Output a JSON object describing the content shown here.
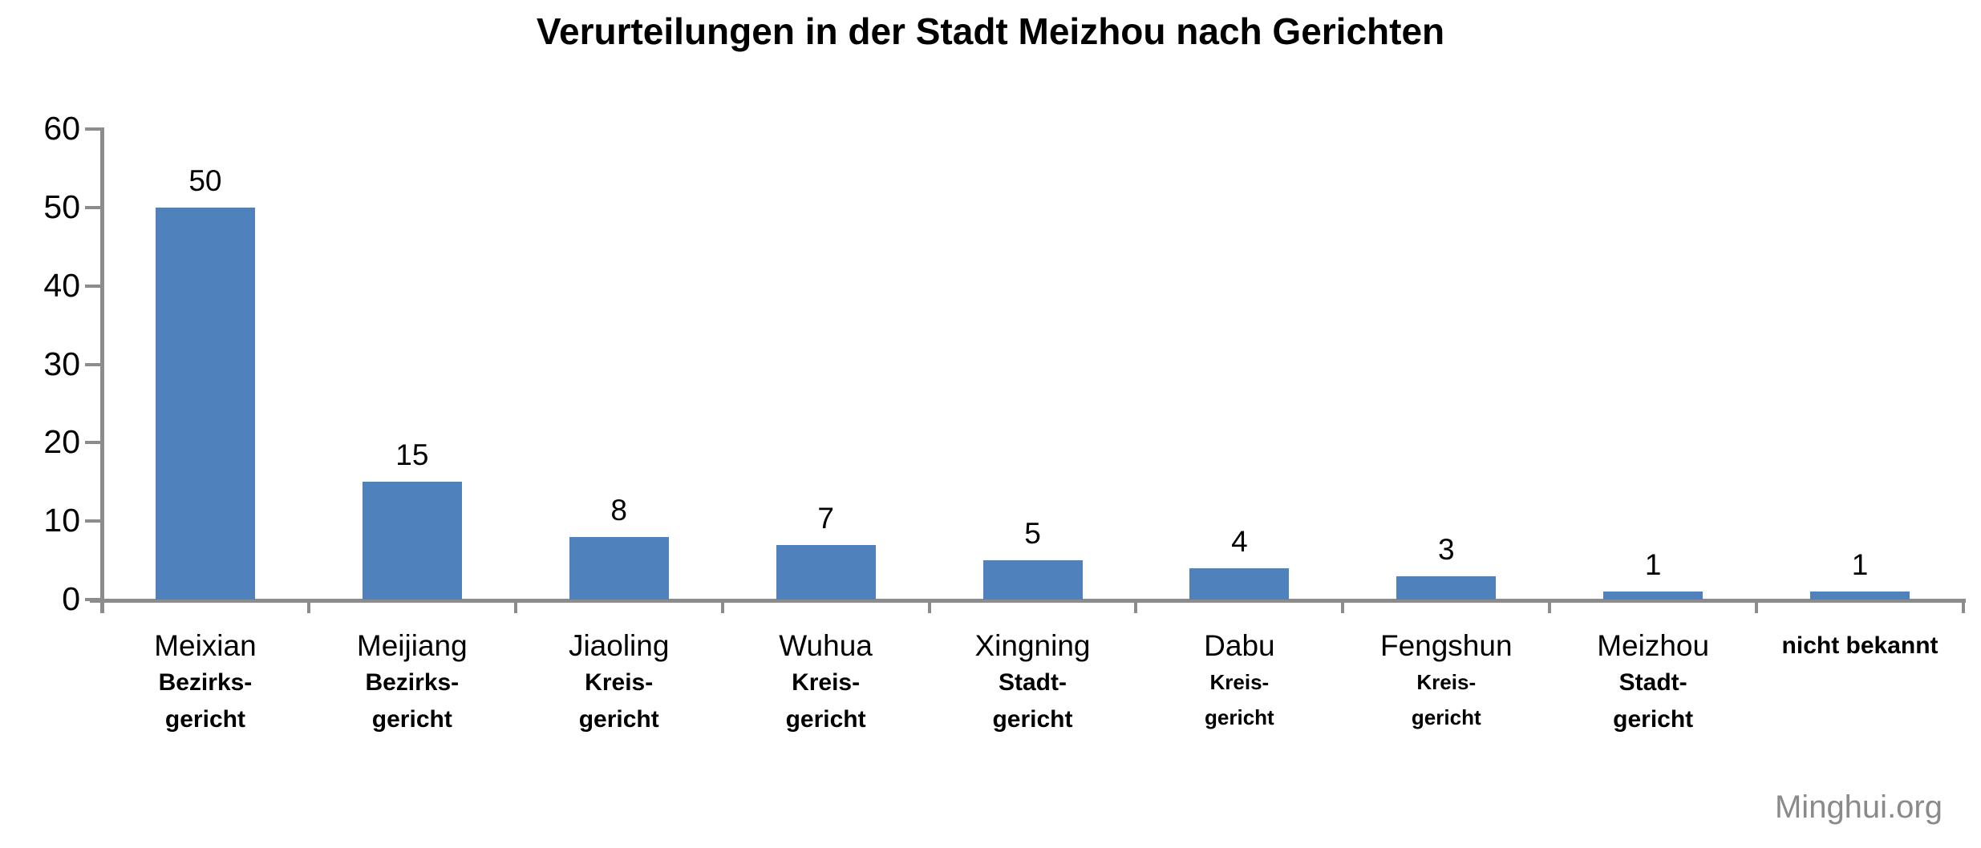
{
  "chart_data": {
    "type": "bar",
    "title": "Verurteilungen in der Stadt Meizhou nach Gerichten",
    "categories": [
      {
        "name": "Meixian",
        "lines": [
          "Bezirks-",
          "gericht"
        ],
        "size": "large",
        "bold_name": false
      },
      {
        "name": "Meijiang",
        "lines": [
          "Bezirks-",
          "gericht"
        ],
        "size": "large",
        "bold_name": false
      },
      {
        "name": "Jiaoling",
        "lines": [
          "Kreis-",
          "gericht"
        ],
        "size": "large",
        "bold_name": false
      },
      {
        "name": "Wuhua",
        "lines": [
          "Kreis-",
          "gericht"
        ],
        "size": "large",
        "bold_name": false
      },
      {
        "name": "Xingning",
        "lines": [
          "Stadt-",
          "gericht"
        ],
        "size": "large",
        "bold_name": false
      },
      {
        "name": "Dabu",
        "lines": [
          "Kreis-",
          "gericht"
        ],
        "size": "small",
        "bold_name": false
      },
      {
        "name": "Fengshun",
        "lines": [
          "Kreis-",
          "gericht"
        ],
        "size": "small",
        "bold_name": false
      },
      {
        "name": "Meizhou",
        "lines": [
          "Stadt-",
          "gericht"
        ],
        "size": "large",
        "bold_name": false
      },
      {
        "name": "nicht bekannt",
        "lines": [],
        "size": "large",
        "bold_name": true
      }
    ],
    "values": [
      50,
      15,
      8,
      7,
      5,
      4,
      3,
      1,
      1
    ],
    "data_labels": [
      "50",
      "15",
      "8",
      "7",
      "5",
      "4",
      "3",
      "1",
      "1"
    ],
    "ylim": [
      0,
      60
    ],
    "yticks": [
      "0",
      "10",
      "20",
      "30",
      "40",
      "50",
      "60"
    ],
    "xlabel": "",
    "ylabel": "",
    "grid": false,
    "legend": false,
    "bar_color": "#4F81BD",
    "axis_color": "#8C8C8C",
    "label_color": "#000000"
  },
  "watermark": "Minghui.org"
}
